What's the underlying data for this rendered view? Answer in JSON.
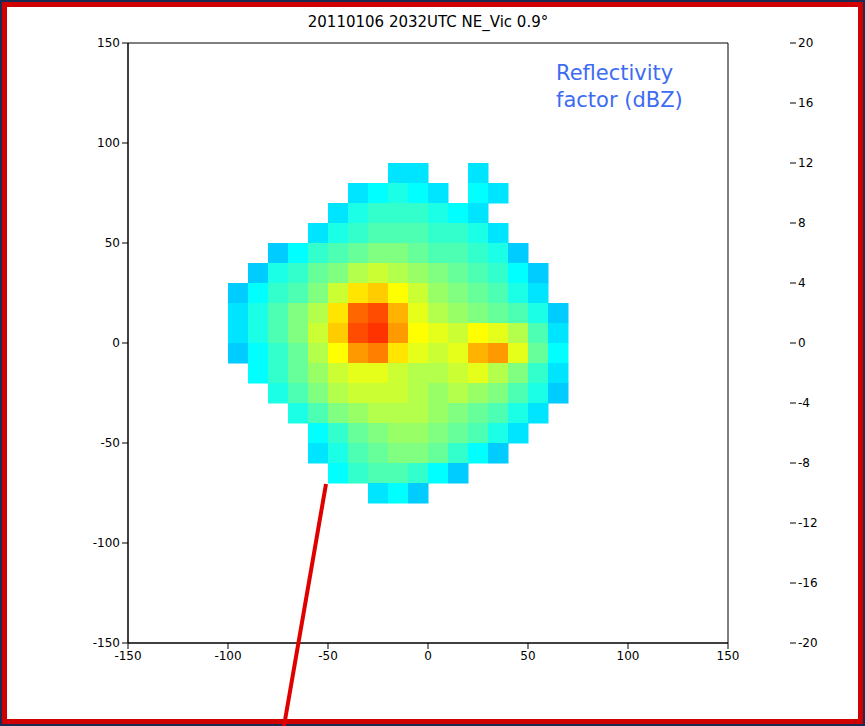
{
  "chart_data": {
    "type": "heatmap",
    "title": "20110106 2032UTC NE_Vic 0.9°",
    "annotation": "Reflectivity factor (dBZ)",
    "xlim": [
      -150,
      150
    ],
    "xticks": [
      -150,
      -100,
      -50,
      0,
      50,
      100,
      150
    ],
    "ylim": [
      -150,
      150
    ],
    "yticks": [
      -150,
      -100,
      -50,
      0,
      50,
      100,
      150
    ],
    "cells": {
      "x": [
        -105,
        -95,
        -85,
        -75,
        -65,
        -55,
        -45,
        -35,
        -25,
        -15,
        -5,
        5,
        15,
        25,
        35,
        45,
        55,
        65
      ],
      "y": [
        85,
        75,
        65,
        55,
        45,
        35,
        25,
        15,
        5,
        -5,
        -15,
        -25,
        -35,
        -45,
        -55,
        -65,
        -75
      ],
      "values": [
        [
          null,
          null,
          null,
          null,
          null,
          null,
          null,
          null,
          null,
          -6,
          -6,
          null,
          null,
          -6,
          null,
          null,
          null,
          null
        ],
        [
          null,
          null,
          null,
          null,
          null,
          null,
          null,
          -6,
          -5,
          -4,
          -5,
          -6,
          null,
          -5,
          -6,
          null,
          null,
          null
        ],
        [
          null,
          null,
          null,
          null,
          null,
          null,
          -6,
          -4,
          -3,
          -3,
          -3,
          -4,
          -5,
          -6,
          null,
          null,
          null,
          null
        ],
        [
          null,
          null,
          null,
          null,
          null,
          -6,
          -4,
          -3,
          -2,
          -2,
          -2,
          -3,
          -3,
          -4,
          -6,
          null,
          null,
          null
        ],
        [
          null,
          null,
          null,
          -7,
          -5,
          -3,
          -2,
          -1,
          0,
          0,
          -1,
          -2,
          -2,
          -3,
          -4,
          -7,
          null,
          null
        ],
        [
          null,
          null,
          -7,
          -4,
          -3,
          -1,
          0,
          2,
          3,
          2,
          1,
          0,
          -1,
          -2,
          -3,
          -5,
          -7,
          null
        ],
        [
          null,
          -7,
          -5,
          -3,
          -2,
          0,
          3,
          6,
          7,
          5,
          3,
          1,
          0,
          -1,
          -2,
          -4,
          -6,
          null
        ],
        [
          null,
          -6,
          -4,
          -2,
          0,
          2,
          6,
          11,
          12,
          8,
          4,
          2,
          1,
          0,
          -1,
          -2,
          -4,
          -7
        ],
        [
          null,
          -6,
          -4,
          -2,
          0,
          3,
          7,
          12,
          13,
          9,
          5,
          4,
          3,
          5,
          4,
          2,
          -2,
          -6
        ],
        [
          null,
          -7,
          -5,
          -3,
          -1,
          2,
          5,
          9,
          10,
          6,
          4,
          3,
          4,
          8,
          9,
          4,
          -1,
          -5
        ],
        [
          null,
          null,
          -5,
          -3,
          -1,
          1,
          3,
          4,
          4,
          3,
          2,
          2,
          3,
          4,
          2,
          0,
          -3,
          -6
        ],
        [
          null,
          null,
          null,
          -4,
          -2,
          0,
          2,
          3,
          3,
          3,
          2,
          1,
          2,
          1,
          0,
          -2,
          -4,
          -7
        ],
        [
          null,
          null,
          null,
          null,
          -4,
          -2,
          0,
          1,
          2,
          2,
          2,
          1,
          0,
          -1,
          -2,
          -4,
          -6,
          null
        ],
        [
          null,
          null,
          null,
          null,
          null,
          -5,
          -3,
          -1,
          0,
          1,
          1,
          0,
          -1,
          -2,
          -4,
          -6,
          null,
          null
        ],
        [
          null,
          null,
          null,
          null,
          null,
          -6,
          -4,
          -2,
          -1,
          0,
          0,
          -1,
          -3,
          -5,
          -7,
          null,
          null,
          null
        ],
        [
          null,
          null,
          null,
          null,
          null,
          null,
          -5,
          -3,
          -2,
          -2,
          -3,
          -5,
          -7,
          null,
          null,
          null,
          null,
          null
        ],
        [
          null,
          null,
          null,
          null,
          null,
          null,
          null,
          null,
          -6,
          -5,
          -7,
          null,
          null,
          null,
          null,
          null,
          null,
          null
        ]
      ]
    },
    "colorbar": {
      "range": [
        -20,
        20
      ],
      "ticks": [
        -20,
        -16,
        -12,
        -8,
        -4,
        0,
        4,
        8,
        12,
        16,
        20
      ]
    }
  }
}
